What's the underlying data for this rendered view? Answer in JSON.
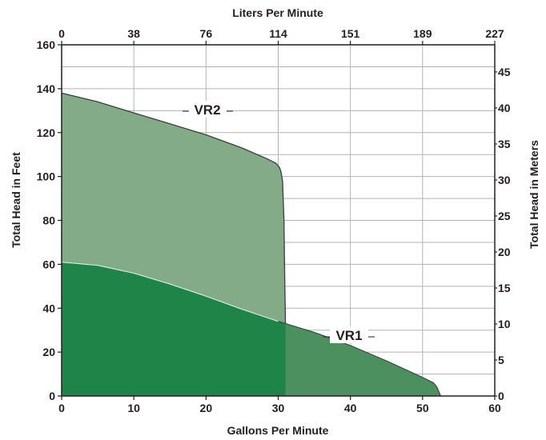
{
  "chart_data": {
    "type": "area",
    "x_axis_bottom": {
      "label": "Gallons Per Minute",
      "min": 0,
      "max": 60,
      "ticks": [
        "0",
        "10",
        "20",
        "30",
        "40",
        "50",
        "60"
      ]
    },
    "x_axis_top": {
      "label": "Liters Per Minute",
      "ticks": [
        "0",
        "38",
        "76",
        "114",
        "151",
        "189",
        "227"
      ]
    },
    "y_axis_left": {
      "label": "Total Head in Feet",
      "min": 0,
      "max": 160,
      "ticks": [
        "0",
        "20",
        "40",
        "60",
        "80",
        "100",
        "120",
        "140",
        "160"
      ]
    },
    "y_axis_right": {
      "label": "Total Head in Meters",
      "ticks": [
        "0",
        "5",
        "10",
        "15",
        "20",
        "25",
        "30",
        "35",
        "40",
        "45"
      ]
    },
    "grid": true,
    "series": [
      {
        "name": "VR2",
        "color": "#84ab87",
        "points": [
          [
            0,
            138
          ],
          [
            5,
            134
          ],
          [
            10,
            129
          ],
          [
            15,
            124
          ],
          [
            20,
            119
          ],
          [
            25,
            113
          ],
          [
            28.5,
            108
          ],
          [
            29.7,
            106
          ],
          [
            30.2,
            104
          ],
          [
            30.4,
            102
          ],
          [
            30.6,
            98
          ],
          [
            30.8,
            80
          ],
          [
            30.9,
            55
          ],
          [
            31,
            34
          ],
          [
            31,
            33
          ]
        ]
      },
      {
        "name": "VR1",
        "color": "#1e8448",
        "points": [
          [
            0,
            61
          ],
          [
            5,
            59.5
          ],
          [
            10,
            56
          ],
          [
            15,
            51
          ],
          [
            20,
            45.5
          ],
          [
            25,
            39.5
          ],
          [
            30,
            34
          ],
          [
            35,
            29
          ],
          [
            40,
            23
          ],
          [
            45,
            16
          ],
          [
            50,
            8.5
          ],
          [
            51.5,
            6
          ],
          [
            52,
            4
          ],
          [
            52.5,
            0
          ]
        ]
      }
    ],
    "legend": "inline labels",
    "colors": {
      "vr2_fill": "#84ab87",
      "vr1_fill": "#1e8448",
      "vr1_over_vr2": "#4d9060",
      "grid": "#b3b3b3",
      "frame": "#231f20"
    }
  }
}
